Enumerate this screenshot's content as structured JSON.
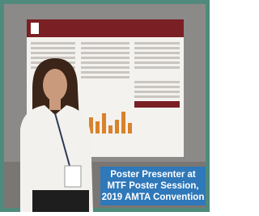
{
  "caption": {
    "lines": [
      "Poster Presenter at",
      "MTF Poster Session,",
      "2019 AMTA Convention"
    ]
  }
}
